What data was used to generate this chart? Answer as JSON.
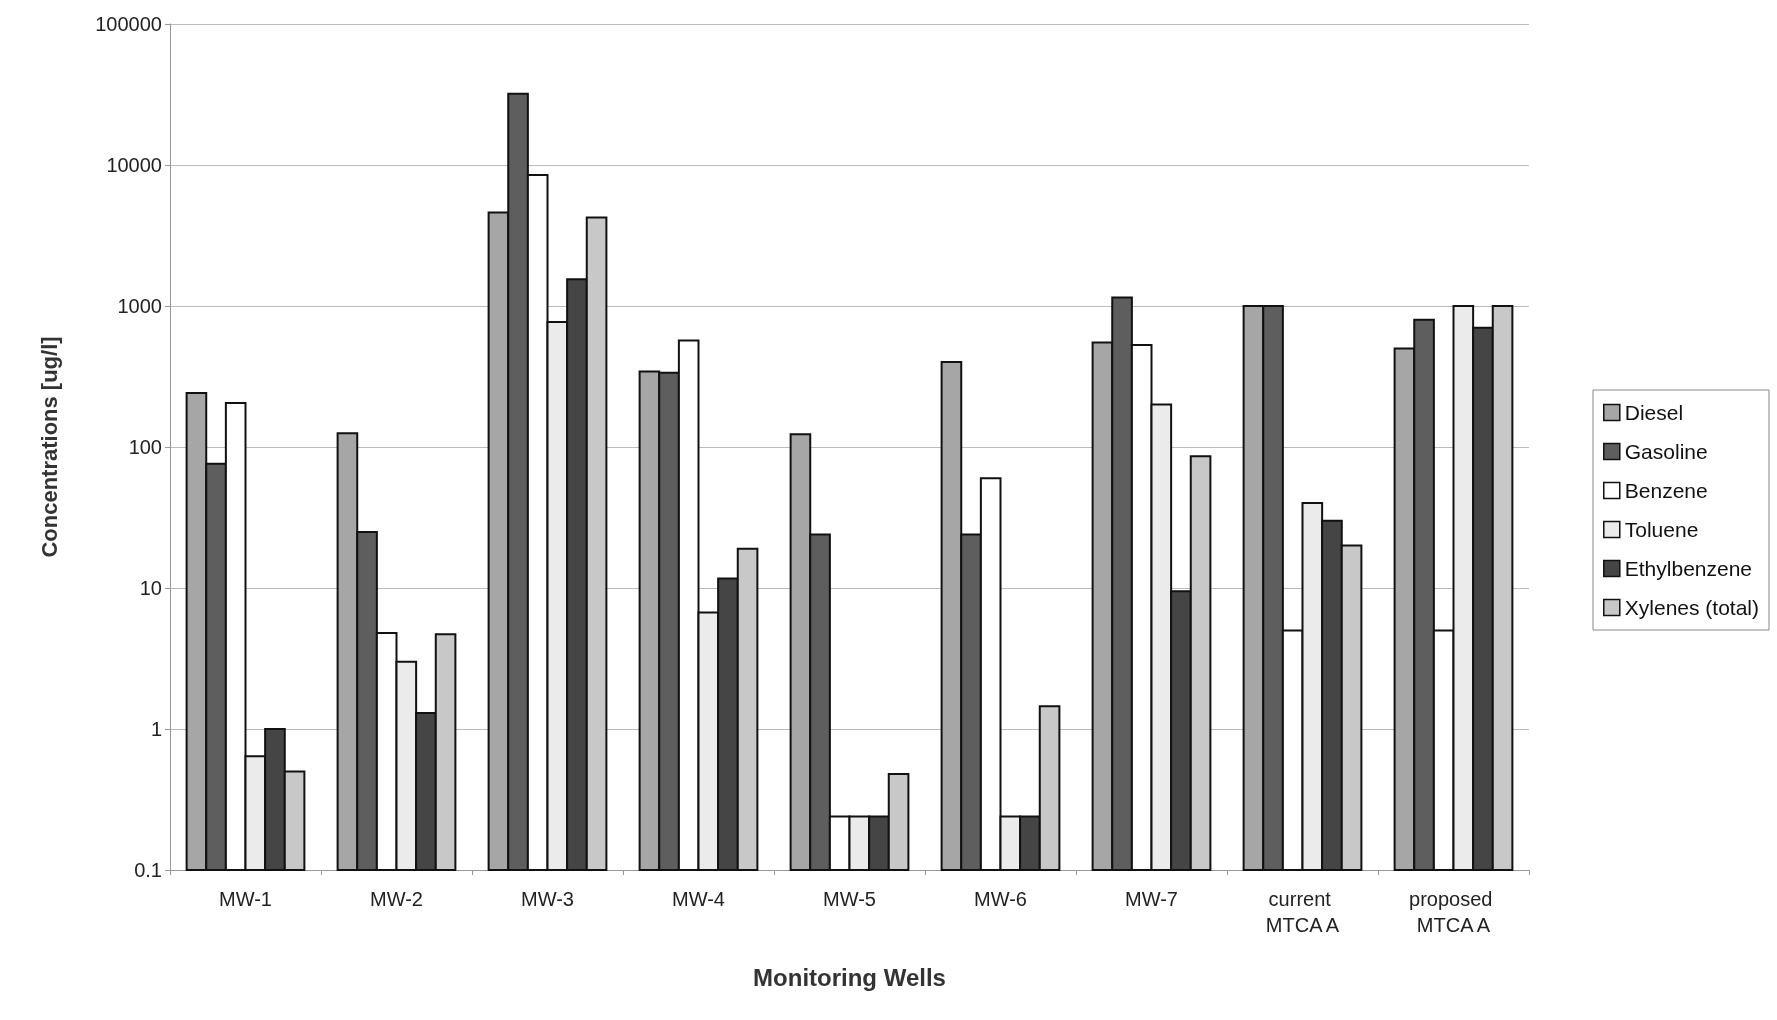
{
  "chart_data": {
    "type": "bar",
    "xlabel": "Monitoring Wells",
    "ylabel": "Concentrations [ug/l]",
    "categories": [
      "MW-1",
      "MW-2",
      "MW-3",
      "MW-4",
      "MW-5",
      "MW-6",
      "MW-7",
      "current MTCA A",
      "proposed MTCA A"
    ],
    "series": [
      {
        "name": "Diesel",
        "color": "#a6a6a6",
        "values": [
          242,
          125,
          4600,
          343,
          123,
          400,
          550,
          1000,
          500
        ]
      },
      {
        "name": "Gasoline",
        "color": "#5e5e5e",
        "values": [
          76,
          25,
          32000,
          336,
          24,
          24,
          1150,
          1000,
          800
        ]
      },
      {
        "name": "Benzene",
        "color": "#ffffff",
        "values": [
          205,
          4.8,
          8500,
          570,
          0.24,
          60,
          530,
          5,
          5
        ]
      },
      {
        "name": "Toluene",
        "color": "#ebebeb",
        "values": [
          0.64,
          3,
          770,
          6.7,
          0.24,
          0.24,
          200,
          40,
          1000
        ]
      },
      {
        "name": "Ethylbenzene",
        "color": "#454545",
        "values": [
          1,
          1.3,
          1550,
          11.7,
          0.24,
          0.24,
          9.5,
          30,
          700
        ]
      },
      {
        "name": "Xylenes (total)",
        "color": "#c8c8c8",
        "values": [
          0.5,
          4.7,
          4250,
          19,
          0.48,
          1.45,
          86,
          20,
          1000
        ]
      }
    ],
    "log": "y",
    "ylim": [
      0.1,
      100000
    ],
    "yticks": [
      0.1,
      1,
      10,
      100,
      1000,
      10000,
      100000
    ],
    "grid": "y",
    "legend": "right"
  }
}
